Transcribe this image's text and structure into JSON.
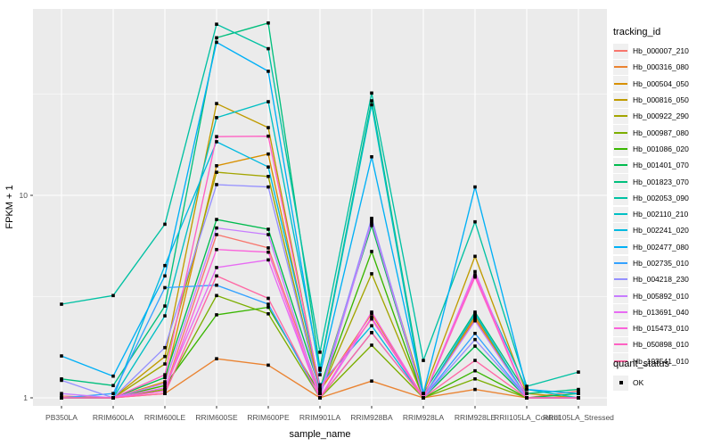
{
  "axes": {
    "x_title": "sample_name",
    "y_title": "FPKM + 1"
  },
  "legend": {
    "tracking_title": "tracking_id",
    "quant_title": "quant_status",
    "quant_items": [
      {
        "label": "OK",
        "marker": "black-square"
      }
    ]
  },
  "chart_data": {
    "type": "line",
    "title": "",
    "xlabel": "sample_name",
    "ylabel": "FPKM + 1",
    "y_scale": "log10",
    "ylim": [
      0.93,
      90
    ],
    "y_ticks": [
      {
        "value": 1,
        "label": "1"
      },
      {
        "value": 10,
        "label": "10"
      }
    ],
    "y_minor_ticks": [
      3.162,
      31.62
    ],
    "grid": "white-on-gray",
    "panel_bg": "#ebebeb",
    "grid_color": "#ffffff",
    "point_marker": {
      "shape": "square",
      "color": "#000000",
      "size": 3.6
    },
    "legend_position": "right",
    "categories": [
      "PB350LA",
      "RRIM600LA",
      "RRIM600LE",
      "RRIM600SE",
      "RRIM600PE",
      "RRIM901LA",
      "RRIM928BA",
      "RRIM928LA",
      "RRIM928LE",
      "RRII105LA_Control",
      "RRII105LA_Stressed"
    ],
    "series": [
      {
        "name": "Hb_000007_210",
        "color": "#F8766D",
        "values": [
          1.02,
          1.0,
          1.1,
          6.4,
          5.5,
          1.05,
          7.6,
          1.0,
          2.5,
          1.0,
          1.08
        ]
      },
      {
        "name": "Hb_000316_080",
        "color": "#EA8331",
        "values": [
          1.0,
          1.0,
          1.05,
          1.56,
          1.45,
          1.0,
          1.21,
          1.0,
          1.1,
          1.0,
          1.0
        ]
      },
      {
        "name": "Hb_000504_050",
        "color": "#D89000",
        "values": [
          1.0,
          1.0,
          1.2,
          14.0,
          16.0,
          1.08,
          2.6,
          1.0,
          2.45,
          1.0,
          1.0
        ]
      },
      {
        "name": "Hb_000816_050",
        "color": "#C09B00",
        "values": [
          1.0,
          1.0,
          1.6,
          28.4,
          21.6,
          1.1,
          7.3,
          1.05,
          5.0,
          1.05,
          1.0
        ]
      },
      {
        "name": "Hb_000922_290",
        "color": "#A3A500",
        "values": [
          1.0,
          1.0,
          1.47,
          13.0,
          12.4,
          1.05,
          4.1,
          1.0,
          2.55,
          1.0,
          1.0
        ]
      },
      {
        "name": "Hb_000987_080",
        "color": "#7CAE00",
        "values": [
          1.0,
          1.0,
          1.1,
          3.2,
          2.6,
          1.0,
          1.82,
          1.0,
          1.24,
          1.0,
          1.0
        ]
      },
      {
        "name": "Hb_001086_020",
        "color": "#39B600",
        "values": [
          1.0,
          1.0,
          1.15,
          2.57,
          2.8,
          1.05,
          5.28,
          1.0,
          1.36,
          1.0,
          1.0
        ]
      },
      {
        "name": "Hb_001401_070",
        "color": "#00BB4E",
        "values": [
          1.0,
          1.0,
          1.26,
          7.6,
          6.8,
          1.1,
          7.1,
          1.0,
          1.8,
          1.0,
          1.05
        ]
      },
      {
        "name": "Hb_001823_070",
        "color": "#00BF7D",
        "values": [
          1.24,
          1.15,
          2.84,
          60.0,
          71.0,
          1.4,
          29.3,
          1.05,
          2.65,
          1.05,
          1.1
        ]
      },
      {
        "name": "Hb_002053_090",
        "color": "#00C1A3",
        "values": [
          2.9,
          3.2,
          7.2,
          70.0,
          53.0,
          1.68,
          32.0,
          1.53,
          7.4,
          1.14,
          1.34
        ]
      },
      {
        "name": "Hb_002110_210",
        "color": "#00BFC4",
        "values": [
          1.0,
          1.0,
          2.54,
          24.2,
          29.0,
          1.37,
          28.0,
          1.0,
          4.0,
          1.1,
          1.0
        ]
      },
      {
        "name": "Hb_002241_020",
        "color": "#00BAE0",
        "values": [
          1.0,
          1.0,
          4.5,
          18.4,
          13.8,
          1.16,
          2.27,
          1.0,
          2.6,
          1.0,
          1.0
        ]
      },
      {
        "name": "Hb_002477_080",
        "color": "#00B0F6",
        "values": [
          1.61,
          1.28,
          4.0,
          57.0,
          41.0,
          1.3,
          15.5,
          1.05,
          11.0,
          1.1,
          1.05
        ]
      },
      {
        "name": "Hb_002735_010",
        "color": "#35A2FF",
        "values": [
          1.0,
          1.05,
          3.5,
          3.6,
          2.9,
          1.0,
          2.1,
          1.0,
          2.08,
          1.0,
          1.0
        ]
      },
      {
        "name": "Hb_004218_230",
        "color": "#9590FF",
        "values": [
          1.22,
          1.0,
          1.77,
          11.3,
          11.0,
          1.05,
          7.7,
          1.0,
          1.94,
          1.0,
          1.0
        ]
      },
      {
        "name": "Hb_005892_010",
        "color": "#C77CFF",
        "values": [
          1.05,
          1.0,
          1.18,
          6.9,
          6.4,
          1.0,
          7.4,
          1.0,
          2.4,
          1.0,
          1.0
        ]
      },
      {
        "name": "Hb_013691_040",
        "color": "#E76BF3",
        "values": [
          1.0,
          1.0,
          1.12,
          4.4,
          4.8,
          1.0,
          2.5,
          1.0,
          4.2,
          1.0,
          1.0
        ]
      },
      {
        "name": "Hb_015473_010",
        "color": "#FA62DB",
        "values": [
          1.0,
          1.0,
          1.08,
          5.4,
          5.24,
          1.0,
          2.65,
          1.0,
          4.05,
          1.0,
          1.0
        ]
      },
      {
        "name": "Hb_050898_010",
        "color": "#FF61C3",
        "values": [
          1.0,
          1.0,
          1.3,
          19.5,
          19.6,
          1.12,
          2.45,
          1.0,
          3.95,
          1.0,
          1.0
        ]
      },
      {
        "name": "Hb_103541_010",
        "color": "#FF67A4",
        "values": [
          1.0,
          1.0,
          1.05,
          4.0,
          3.1,
          1.0,
          2.1,
          1.0,
          1.53,
          1.0,
          1.0
        ]
      }
    ]
  }
}
